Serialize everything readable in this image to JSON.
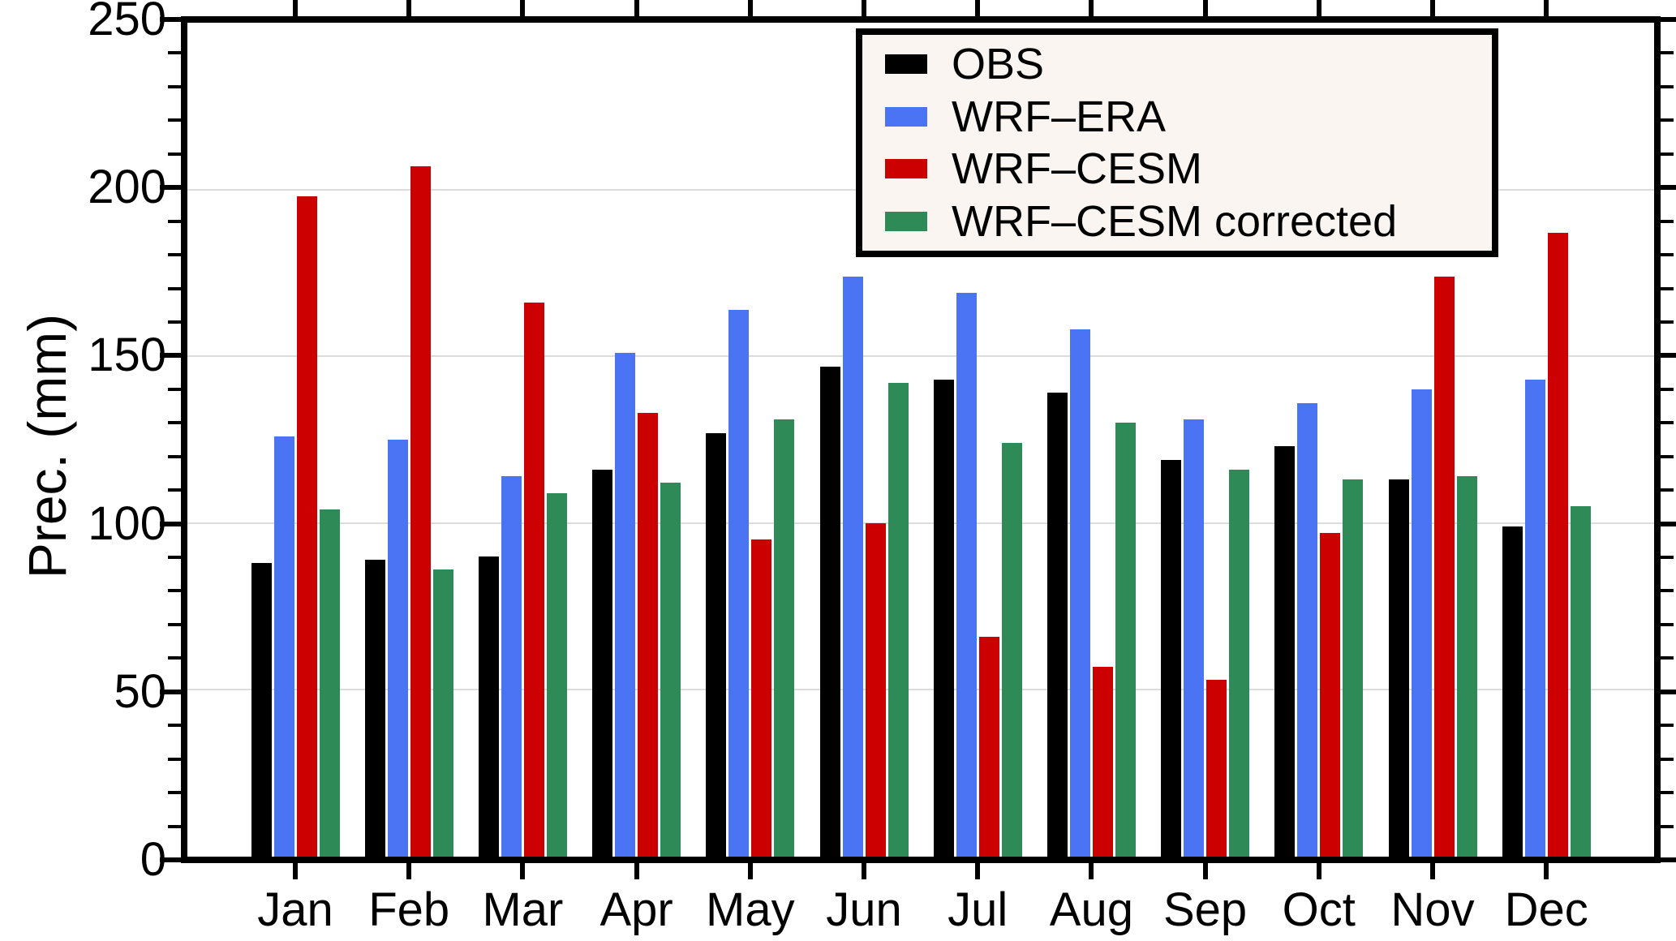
{
  "chart_data": {
    "type": "bar",
    "title": "",
    "xlabel": "",
    "ylabel": "Prec. (mm)",
    "ylim": [
      0,
      250
    ],
    "ytick_step": 50,
    "yminor_tick_step": 10,
    "ytick_labels": [
      "0",
      "50",
      "100",
      "150",
      "200",
      "250"
    ],
    "grid": "horizontal gridlines at major ticks",
    "legend_position": "top-right inside figure",
    "categories": [
      "Jan",
      "Feb",
      "Mar",
      "Apr",
      "May",
      "Jun",
      "Jul",
      "Aug",
      "Sep",
      "Oct",
      "Nov",
      "Dec"
    ],
    "series": [
      {
        "name": "OBS",
        "color": "#000000",
        "values": [
          88,
          89,
          90,
          116,
          127,
          147,
          143,
          139,
          119,
          123,
          113,
          99
        ]
      },
      {
        "name": "WRF–ERA",
        "color": "#4a74f4",
        "values": [
          126,
          125,
          114,
          151,
          164,
          174,
          169,
          158,
          131,
          136,
          140,
          143
        ]
      },
      {
        "name": "WRF–CESM",
        "color": "#cc0000",
        "values": [
          198,
          207,
          166,
          133,
          95,
          100,
          66,
          57,
          53,
          97,
          174,
          187
        ]
      },
      {
        "name": "WRF–CESM corrected",
        "color": "#2e8b57",
        "values": [
          104,
          86,
          109,
          112,
          131,
          142,
          124,
          130,
          116,
          113,
          114,
          105
        ]
      }
    ]
  },
  "colors": {
    "background": "#ffffff",
    "axis": "#000000",
    "gridline": "#dcdcdc",
    "legend_background": "#fbf5f1"
  }
}
